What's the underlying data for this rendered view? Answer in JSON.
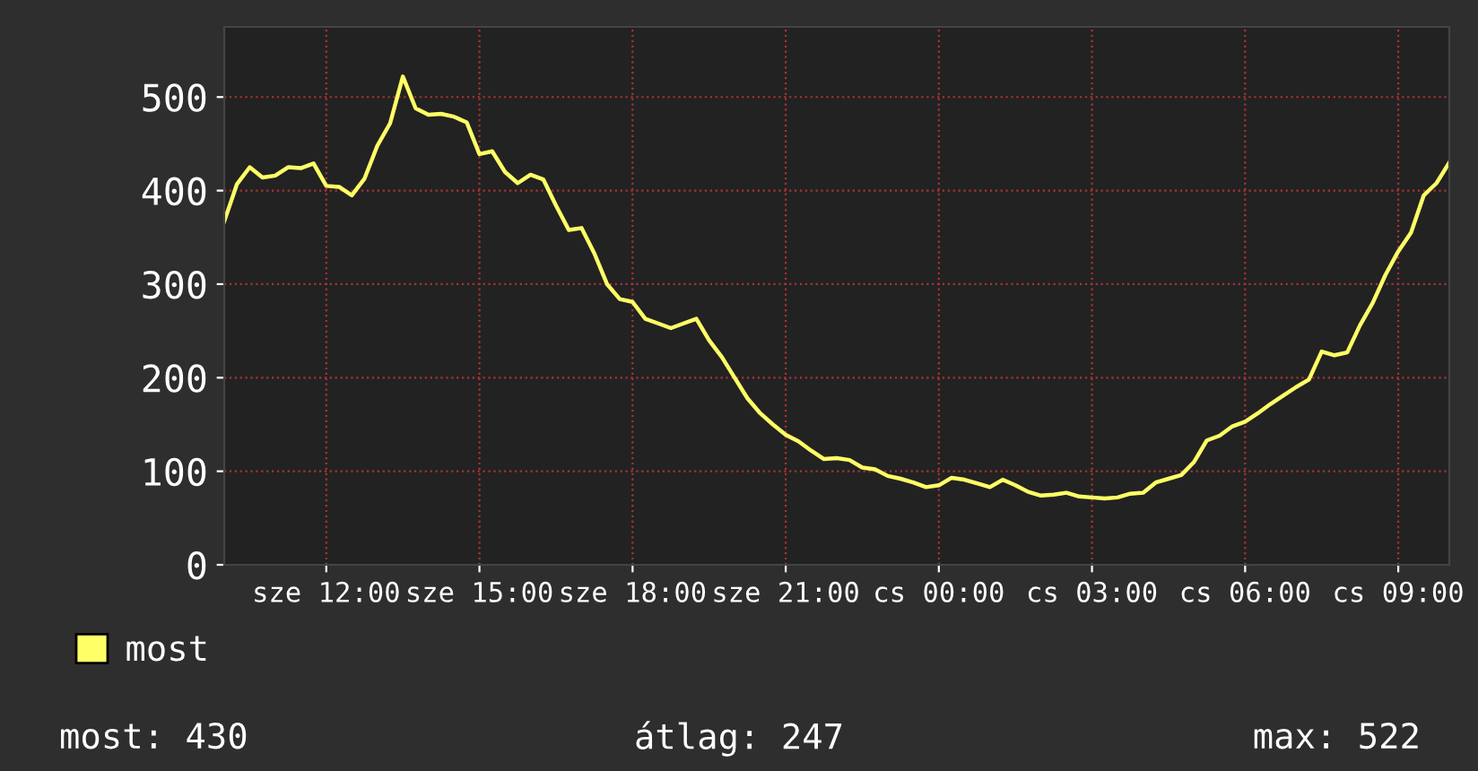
{
  "chart_data": {
    "type": "line",
    "categories": [
      null,
      null,
      null,
      null,
      null,
      null,
      null,
      null,
      "sze 12:00",
      null,
      null,
      null,
      null,
      null,
      null,
      null,
      null,
      null,
      null,
      null,
      "sze 15:00",
      null,
      null,
      null,
      null,
      null,
      null,
      null,
      null,
      null,
      null,
      null,
      "sze 18:00",
      null,
      null,
      null,
      null,
      null,
      null,
      null,
      null,
      null,
      null,
      null,
      "sze 21:00",
      null,
      null,
      null,
      null,
      null,
      null,
      null,
      null,
      null,
      null,
      null,
      "cs 00:00",
      null,
      null,
      null,
      null,
      null,
      null,
      null,
      null,
      null,
      null,
      null,
      "cs 03:00",
      null,
      null,
      null,
      null,
      null,
      null,
      null,
      null,
      null,
      null,
      null,
      "cs 06:00",
      null,
      null,
      null,
      null,
      null,
      null,
      null,
      null,
      null,
      null,
      null,
      "cs 09:00",
      null,
      null,
      null,
      null
    ],
    "ylim": [
      0,
      575
    ],
    "yticks": [
      0,
      100,
      200,
      300,
      400,
      500
    ],
    "grid": true,
    "legend": "bottom",
    "marker": "none",
    "line_style": "solid",
    "series": [
      {
        "name": "most",
        "color": "#ffff66",
        "values": [
          367,
          407,
          425,
          414,
          416,
          425,
          424,
          429,
          405,
          404,
          395,
          413,
          448,
          472,
          522,
          488,
          481,
          482,
          479,
          473,
          439,
          442,
          420,
          408,
          417,
          412,
          384,
          358,
          360,
          333,
          300,
          284,
          281,
          263,
          258,
          253,
          258,
          263,
          240,
          222,
          200,
          178,
          162,
          150,
          139,
          132,
          122,
          113,
          114,
          112,
          104,
          102,
          95,
          92,
          88,
          83,
          85,
          93,
          91,
          87,
          83,
          91,
          85,
          78,
          74,
          75,
          77,
          73,
          72,
          71,
          72,
          76,
          77,
          88,
          92,
          96,
          110,
          133,
          138,
          148,
          153,
          162,
          172,
          181,
          190,
          198,
          228,
          224,
          227,
          256,
          280,
          310,
          335,
          355,
          395,
          408,
          430
        ]
      }
    ],
    "annotations": [
      "most: 430",
      "átlag: 247",
      "max: 522"
    ]
  }
}
